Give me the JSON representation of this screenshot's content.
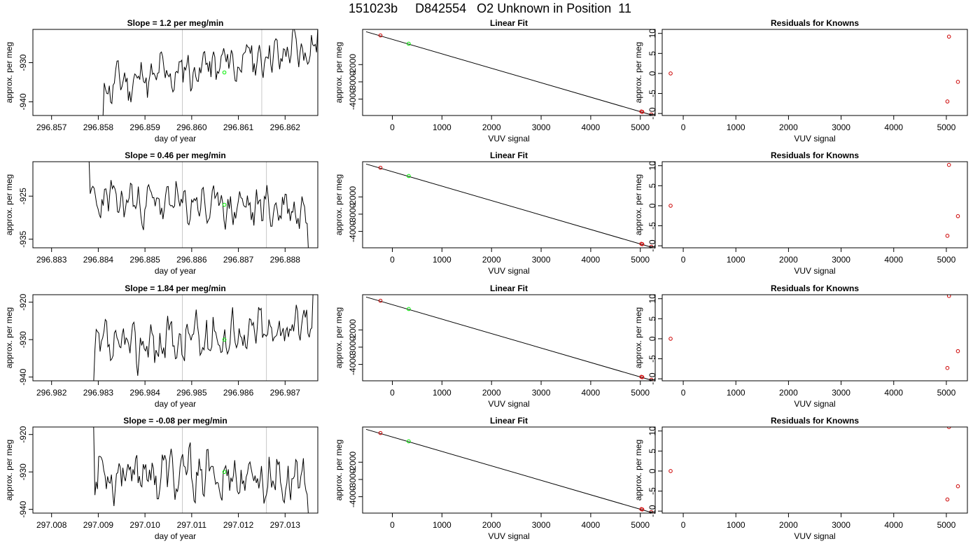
{
  "figure": {
    "title": "151023b     D842554   O2 Unknown in Position  11"
  },
  "colors": {
    "trace": "#000000",
    "unknown_marker": "#00ee00",
    "known_marker": "#cc0000",
    "vline": "#c8c8c8",
    "axis": "#000000"
  },
  "chart_data": [
    {
      "type": "line",
      "title": "Slope =  1.2  per meg/min",
      "xlabel": "day of year",
      "ylabel": "approx. per meg",
      "xlim": [
        296.8566,
        296.8627
      ],
      "ylim": [
        -943.5,
        -921.5
      ],
      "xticks": [
        "296.857",
        "296.858",
        "296.859",
        "296.860",
        "296.861",
        "296.862"
      ],
      "yticks": [
        "-930",
        "-940"
      ],
      "vlines": [
        296.8598,
        296.8615
      ],
      "unknown_point": {
        "x": 296.8607,
        "y": -932.5
      },
      "series": [
        {
          "x0": 296.8581,
          "x1": 296.8627,
          "noise_amp": 4.2,
          "y_start": -936,
          "y_end": -926,
          "seed": 11,
          "start": [
            296.8581,
            -944
          ],
          "end": [
            296.8627,
            -921
          ]
        }
      ]
    },
    {
      "type": "scatter",
      "title": "Linear Fit",
      "xlabel": "VUV signal",
      "ylabel": "approx. per meg",
      "xlim": [
        -600,
        5300
      ],
      "ylim": [
        -4950,
        40
      ],
      "xticks": [
        "0",
        "1000",
        "2000",
        "3000",
        "4000",
        "5000"
      ],
      "yticks": [
        "-2000",
        "-3000",
        "-4000"
      ],
      "line": {
        "x": [
          -530,
          5230
        ],
        "y": [
          -95,
          -4920
        ]
      },
      "knowns": [
        {
          "x": -240,
          "y": -310
        },
        {
          "x": 5020,
          "y": -4720
        },
        {
          "x": 5040,
          "y": -4740
        },
        {
          "x": 5220,
          "y": -4890
        }
      ],
      "unknowns": [
        {
          "x": 330,
          "y": -790
        }
      ]
    },
    {
      "type": "scatter",
      "title": "Residuals for Knowns",
      "xlabel": "VUV signal",
      "ylabel": "approx. per meg",
      "xlim": [
        -400,
        5400
      ],
      "ylim": [
        -10.5,
        11
      ],
      "xticks": [
        "0",
        "1000",
        "2000",
        "3000",
        "4000",
        "5000"
      ],
      "yticks": [
        "10",
        "5",
        "0",
        "-5",
        "-10"
      ],
      "points": [
        {
          "x": -240,
          "y": 0
        },
        {
          "x": 5050,
          "y": 9.2
        },
        {
          "x": 5020,
          "y": -7
        },
        {
          "x": 5220,
          "y": -2.1
        }
      ]
    },
    {
      "type": "line",
      "title": "Slope =  0.46  per meg/min",
      "xlabel": "day of year",
      "ylabel": "approx. per meg",
      "xlim": [
        296.8826,
        296.8887
      ],
      "ylim": [
        -937,
        -917
      ],
      "xticks": [
        "296.883",
        "296.884",
        "296.885",
        "296.886",
        "296.887",
        "296.888"
      ],
      "yticks": [
        "-925",
        "-935"
      ],
      "vlines": [
        296.8858,
        296.8876
      ],
      "unknown_point": {
        "x": 296.8867,
        "y": -927
      },
      "series": [
        {
          "x0": 296.8838,
          "x1": 296.8885,
          "noise_amp": 3.8,
          "y_start": -926,
          "y_end": -928,
          "seed": 23,
          "start": [
            296.8838,
            -916
          ],
          "end": [
            296.8885,
            -938
          ]
        }
      ]
    },
    {
      "type": "scatter",
      "title": "Linear Fit",
      "xlabel": "VUV signal",
      "ylabel": "approx. per meg",
      "xlim": [
        -600,
        5300
      ],
      "ylim": [
        -4950,
        40
      ],
      "xticks": [
        "0",
        "1000",
        "2000",
        "3000",
        "4000",
        "5000"
      ],
      "yticks": [
        "-2000",
        "-3000",
        "-4000"
      ],
      "line": {
        "x": [
          -530,
          5230
        ],
        "y": [
          -95,
          -4920
        ]
      },
      "knowns": [
        {
          "x": -240,
          "y": -310
        },
        {
          "x": 5020,
          "y": -4720
        },
        {
          "x": 5040,
          "y": -4740
        },
        {
          "x": 5220,
          "y": -4890
        }
      ],
      "unknowns": [
        {
          "x": 330,
          "y": -790
        }
      ]
    },
    {
      "type": "scatter",
      "title": "Residuals for Knowns",
      "xlabel": "VUV signal",
      "ylabel": "approx. per meg",
      "xlim": [
        -400,
        5400
      ],
      "ylim": [
        -10.5,
        11
      ],
      "xticks": [
        "0",
        "1000",
        "2000",
        "3000",
        "4000",
        "5000"
      ],
      "yticks": [
        "10",
        "5",
        "0",
        "-5",
        "-10"
      ],
      "points": [
        {
          "x": -240,
          "y": 0
        },
        {
          "x": 5050,
          "y": 10.2
        },
        {
          "x": 5020,
          "y": -7.5
        },
        {
          "x": 5220,
          "y": -2.6
        }
      ]
    },
    {
      "type": "line",
      "title": "Slope =  1.84  per meg/min",
      "xlabel": "day of year",
      "ylabel": "approx. per meg",
      "xlim": [
        296.9816,
        296.9877
      ],
      "ylim": [
        -941,
        -918
      ],
      "xticks": [
        "296.982",
        "296.983",
        "296.984",
        "296.985",
        "296.986",
        "296.987"
      ],
      "yticks": [
        "-920",
        "-930",
        "-940"
      ],
      "vlines": [
        296.9848,
        296.9866
      ],
      "unknown_point": {
        "x": 296.9857,
        "y": -930
      },
      "series": [
        {
          "x0": 296.9829,
          "x1": 296.9876,
          "noise_amp": 5.0,
          "y_start": -933,
          "y_end": -926,
          "seed": 37,
          "start": [
            296.9829,
            -942
          ],
          "end": [
            296.9876,
            -917
          ]
        }
      ]
    },
    {
      "type": "scatter",
      "title": "Linear Fit",
      "xlabel": "VUV signal",
      "ylabel": "approx. per meg",
      "xlim": [
        -600,
        5300
      ],
      "ylim": [
        -4950,
        40
      ],
      "xticks": [
        "0",
        "1000",
        "2000",
        "3000",
        "4000",
        "5000"
      ],
      "yticks": [
        "-2000",
        "-3000",
        "-4000"
      ],
      "line": {
        "x": [
          -530,
          5230
        ],
        "y": [
          -95,
          -4920
        ]
      },
      "knowns": [
        {
          "x": -240,
          "y": -310
        },
        {
          "x": 5020,
          "y": -4720
        },
        {
          "x": 5040,
          "y": -4740
        },
        {
          "x": 5220,
          "y": -4890
        }
      ],
      "unknowns": [
        {
          "x": 330,
          "y": -790
        }
      ]
    },
    {
      "type": "scatter",
      "title": "Residuals for Knowns",
      "xlabel": "VUV signal",
      "ylabel": "approx. per meg",
      "xlim": [
        -400,
        5400
      ],
      "ylim": [
        -10.5,
        11
      ],
      "xticks": [
        "0",
        "1000",
        "2000",
        "3000",
        "4000",
        "5000"
      ],
      "yticks": [
        "10",
        "5",
        "0",
        "-5",
        "-10"
      ],
      "points": [
        {
          "x": -240,
          "y": 0
        },
        {
          "x": 5050,
          "y": 10.7
        },
        {
          "x": 5020,
          "y": -7.3
        },
        {
          "x": 5220,
          "y": -3.1
        }
      ]
    },
    {
      "type": "line",
      "title": "Slope =  -0.08  per meg/min",
      "xlabel": "day of year",
      "ylabel": "approx. per meg",
      "xlim": [
        297.0076,
        297.0137
      ],
      "ylim": [
        -941,
        -918
      ],
      "xticks": [
        "297.008",
        "297.009",
        "297.010",
        "297.011",
        "297.012",
        "297.013"
      ],
      "yticks": [
        "-920",
        "-930",
        "-940"
      ],
      "vlines": [
        297.0108,
        297.0126
      ],
      "unknown_point": {
        "x": 297.0117,
        "y": -930
      },
      "series": [
        {
          "x0": 297.0089,
          "x1": 297.0135,
          "noise_amp": 5.2,
          "y_start": -930,
          "y_end": -932,
          "seed": 53,
          "start": [
            297.0089,
            -917
          ],
          "end": [
            297.0135,
            -942
          ]
        }
      ]
    },
    {
      "type": "scatter",
      "title": "Linear Fit",
      "xlabel": "VUV signal",
      "ylabel": "approx. per meg",
      "xlim": [
        -600,
        5300
      ],
      "ylim": [
        -4950,
        40
      ],
      "xticks": [
        "0",
        "1000",
        "2000",
        "3000",
        "4000",
        "5000"
      ],
      "yticks": [
        "-2000",
        "-3000",
        "-4000"
      ],
      "line": {
        "x": [
          -530,
          5230
        ],
        "y": [
          -95,
          -4920
        ]
      },
      "knowns": [
        {
          "x": -240,
          "y": -310
        },
        {
          "x": 5020,
          "y": -4720
        },
        {
          "x": 5040,
          "y": -4740
        },
        {
          "x": 5220,
          "y": -4890
        }
      ],
      "unknowns": [
        {
          "x": 330,
          "y": -790
        }
      ]
    },
    {
      "type": "scatter",
      "title": "Residuals for Knowns",
      "xlabel": "VUV signal",
      "ylabel": "approx. per meg",
      "xlim": [
        -400,
        5400
      ],
      "ylim": [
        -10.5,
        11
      ],
      "xticks": [
        "0",
        "1000",
        "2000",
        "3000",
        "4000",
        "5000"
      ],
      "yticks": [
        "10",
        "5",
        "0",
        "-5",
        "-10"
      ],
      "points": [
        {
          "x": -240,
          "y": 0
        },
        {
          "x": 5050,
          "y": 11
        },
        {
          "x": 5020,
          "y": -7.1
        },
        {
          "x": 5220,
          "y": -3.8
        }
      ]
    }
  ]
}
